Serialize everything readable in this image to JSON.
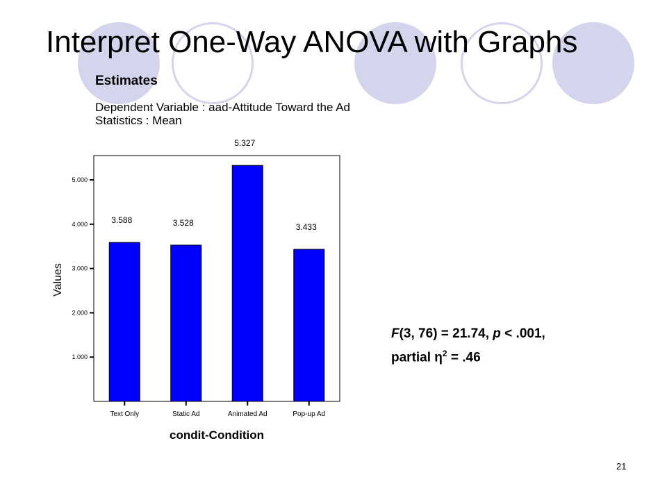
{
  "slide": {
    "title": "Interpret One-Way ANOVA with Graphs",
    "number": "21",
    "accent_color": "#d4d4ec",
    "bar_color": "#0000ff"
  },
  "estimates": {
    "heading": "Estimates",
    "dependent_variable": "Dependent Variable : aad-Attitude Toward the Ad",
    "statistics": "Statistics : Mean"
  },
  "chart_data": {
    "type": "bar",
    "categories": [
      "Text Only",
      "Static Ad",
      "Animated Ad",
      "Pop-up Ad"
    ],
    "values": [
      3.588,
      3.528,
      5.327,
      3.433
    ],
    "value_labels": [
      "3.588",
      "3.528",
      "5.327",
      "3.433"
    ],
    "yticks": [
      "1.000",
      "2.000",
      "3.000",
      "4.000",
      "5.000"
    ],
    "ylim": [
      0,
      5.55
    ],
    "xlabel": "condit-Condition",
    "ylabel": "Values",
    "grid": false
  },
  "stats": {
    "F_symbol": "F",
    "F_args": "(3, 76) = 21.74, ",
    "p_symbol": "p",
    "p_value": " < .001,",
    "effect_label": "partial η",
    "effect_sup": "2",
    "effect_value": " = .46"
  }
}
